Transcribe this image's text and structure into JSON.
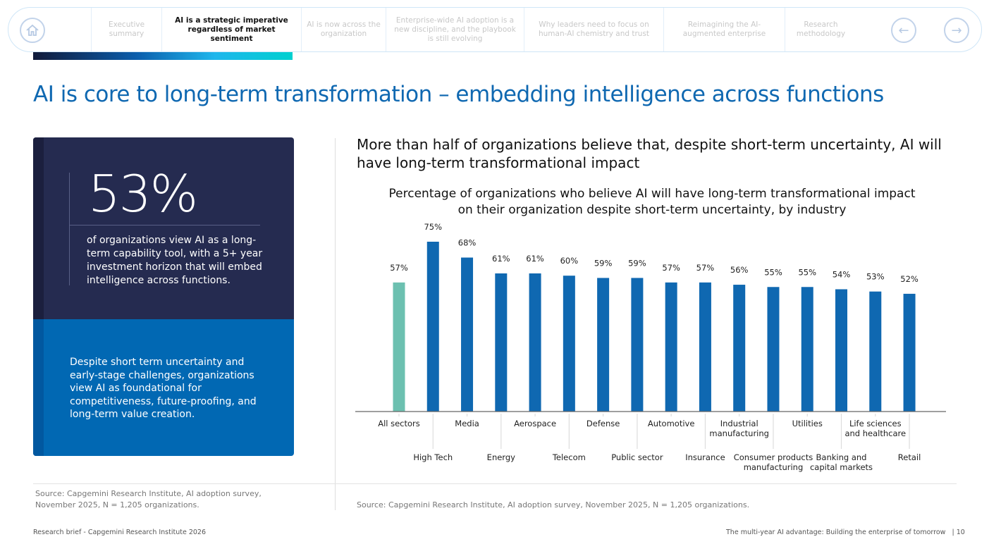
{
  "nav": {
    "home_label": "Home",
    "tabs": [
      {
        "label": "Executive summary",
        "active": false
      },
      {
        "label": "AI is a strategic imperative regardless of market sentiment",
        "active": true
      },
      {
        "label": "AI is now across the organization",
        "active": false
      },
      {
        "label": "Enterprise-wide AI adoption is a new discipline, and the playbook is still evolving",
        "active": false
      },
      {
        "label": "Why leaders need to focus on human-AI chemistry and trust",
        "active": false
      },
      {
        "label": "Reimagining the AI-augmented enterprise",
        "active": false
      },
      {
        "label": "Research methodology",
        "active": false
      }
    ],
    "prev_icon": "arrow-left-icon",
    "next_icon": "arrow-right-icon"
  },
  "page_title": "AI is core to long-term transformation – embedding intelligence across functions",
  "stat_card": {
    "value": "53%",
    "description": "of organizations view AI as a long-term capability tool, with a 5+ year investment horizon that will embed intelligence across functions.",
    "insight": "Despite short term uncertainty and early-stage challenges, organizations view AI as foundational for competitiveness, future-proofing, and long-term value creation."
  },
  "left_source": "Source: Capgemini Research Institute, AI adoption survey, November 2025, N = 1,205 organizations.",
  "subtitle": "More than half of organizations believe that, despite short-term uncertainty, AI will have long-term transformational impact",
  "chart_source": "Source: Capgemini Research Institute, AI adoption survey, November 2025, N = 1,205 organizations.",
  "chart_data": {
    "type": "bar",
    "title": "Percentage of organizations who believe AI will have long-term transformational impact on their organization despite short-term uncertainty, by industry",
    "categories": [
      "All sectors",
      "High Tech",
      "Media",
      "Energy",
      "Aerospace",
      "Telecom",
      "Defense",
      "Public sector",
      "Automotive",
      "Insurance",
      "Industrial manufacturing",
      "Consumer products manufacturing",
      "Utilities",
      "Banking and capital markets",
      "Life sciences and healthcare",
      "Retail"
    ],
    "values": [
      57,
      75,
      68,
      61,
      61,
      60,
      59,
      59,
      57,
      57,
      56,
      55,
      55,
      54,
      53,
      52
    ],
    "data_labels": [
      "57%",
      "75%",
      "68%",
      "61%",
      "61%",
      "60%",
      "59%",
      "59%",
      "57%",
      "57%",
      "56%",
      "55%",
      "55%",
      "54%",
      "53%",
      "52%"
    ],
    "xlabel": "",
    "ylabel": "",
    "ylim": [
      0,
      75
    ],
    "grid": false,
    "colors": {
      "highlight": "#6cc0b0",
      "bar": "#0f68b1"
    }
  },
  "footer": {
    "left": "Research brief - Capgemini Research Institute 2026",
    "right": "The multi-year AI advantage: Building the enterprise of tomorrow",
    "page": "10"
  }
}
